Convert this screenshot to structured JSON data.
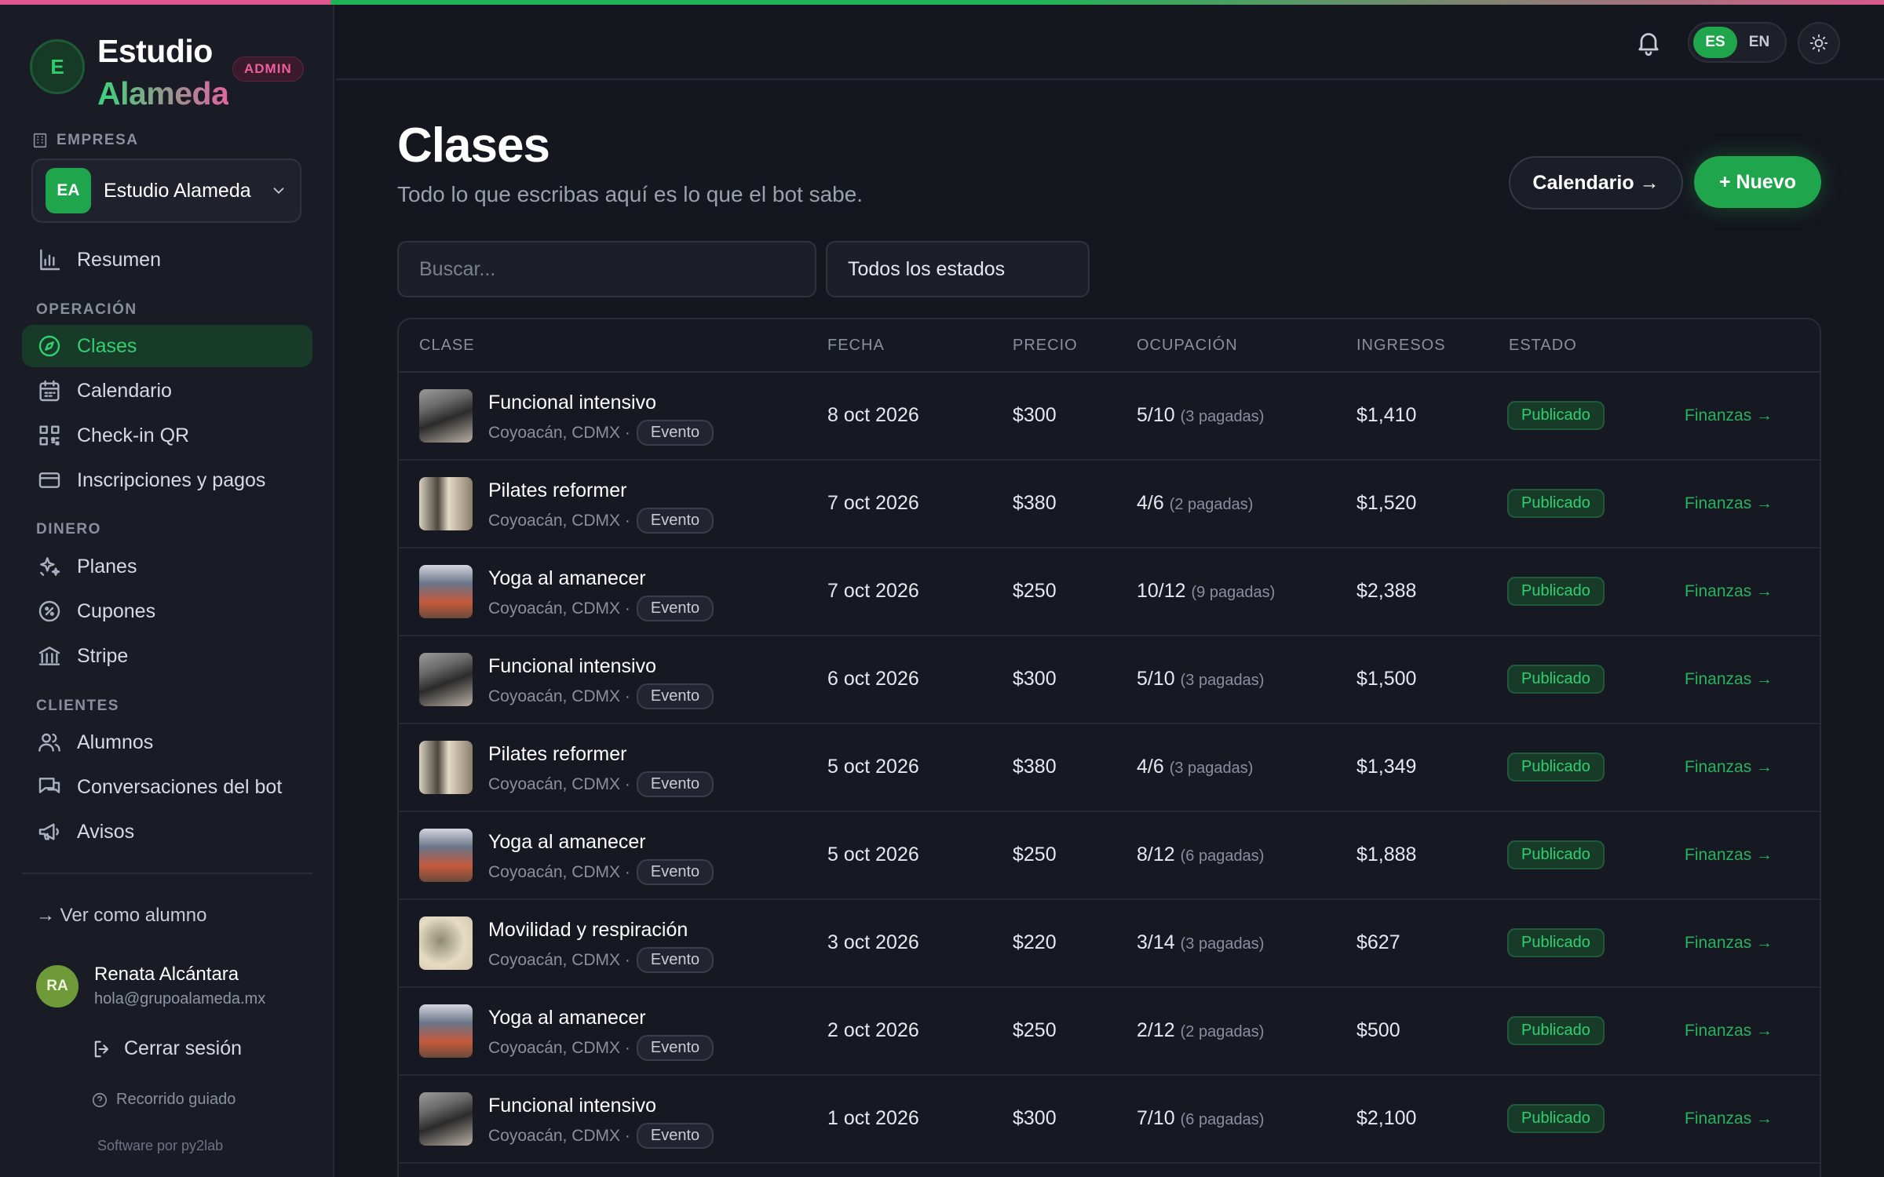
{
  "brand": {
    "initial": "E",
    "name_line1": "Estudio",
    "name_line2": "Alameda",
    "role_badge": "ADMIN"
  },
  "sidebar": {
    "empresa_label": "EMPRESA",
    "empresa": {
      "initials": "EA",
      "name": "Estudio Alameda"
    },
    "summary": {
      "label": "Resumen",
      "icon": "bar-chart-icon"
    },
    "sections": [
      {
        "label": "OPERACIÓN",
        "items": [
          {
            "label": "Clases",
            "icon": "compass-icon",
            "active": true
          },
          {
            "label": "Calendario",
            "icon": "calendar-icon"
          },
          {
            "label": "Check-in QR",
            "icon": "qr-icon"
          },
          {
            "label": "Inscripciones y pagos",
            "icon": "card-icon"
          }
        ]
      },
      {
        "label": "DINERO",
        "items": [
          {
            "label": "Planes",
            "icon": "sparkles-icon"
          },
          {
            "label": "Cupones",
            "icon": "percent-icon"
          },
          {
            "label": "Stripe",
            "icon": "bank-icon"
          }
        ]
      },
      {
        "label": "CLIENTES",
        "items": [
          {
            "label": "Alumnos",
            "icon": "users-icon"
          },
          {
            "label": "Conversaciones del bot",
            "icon": "chat-icon"
          },
          {
            "label": "Avisos",
            "icon": "megaphone-icon"
          }
        ]
      }
    ],
    "view_as_student": "→ Ver como alumno",
    "user": {
      "initials": "RA",
      "name": "Renata Alcántara",
      "email": "hola@grupoalameda.mx"
    },
    "logout": "Cerrar sesión",
    "tour": "Recorrido guiado",
    "credit": "Software por py2lab"
  },
  "topbar": {
    "lang_options": [
      "ES",
      "EN"
    ],
    "lang_selected": "ES"
  },
  "main": {
    "title": "Clases",
    "subtitle": "Todo lo que escribas aquí es lo que el bot sabe.",
    "calendar_button": "Calendario →",
    "new_button": "+ Nuevo",
    "search_placeholder": "Buscar...",
    "status_filter": "Todos los estados",
    "columns": [
      "CLASE",
      "FECHA",
      "PRECIO",
      "OCUPACIÓN",
      "INGRESOS",
      "ESTADO"
    ],
    "rows": [
      {
        "name": "Funcional intensivo",
        "location": "Coyoacán, CDMX ·",
        "tag": "Evento",
        "date": "8 oct 2026",
        "price": "$300",
        "occupancy": "5/10",
        "paid": "(3 pagadas)",
        "revenue": "$1,410",
        "status": "Publicado",
        "link": "Finanzas →"
      },
      {
        "name": "Pilates reformer",
        "location": "Coyoacán, CDMX ·",
        "tag": "Evento",
        "date": "7 oct 2026",
        "price": "$380",
        "occupancy": "4/6",
        "paid": "(2 pagadas)",
        "revenue": "$1,520",
        "status": "Publicado",
        "link": "Finanzas →"
      },
      {
        "name": "Yoga al amanecer",
        "location": "Coyoacán, CDMX ·",
        "tag": "Evento",
        "date": "7 oct 2026",
        "price": "$250",
        "occupancy": "10/12",
        "paid": "(9 pagadas)",
        "revenue": "$2,388",
        "status": "Publicado",
        "link": "Finanzas →"
      },
      {
        "name": "Funcional intensivo",
        "location": "Coyoacán, CDMX ·",
        "tag": "Evento",
        "date": "6 oct 2026",
        "price": "$300",
        "occupancy": "5/10",
        "paid": "(3 pagadas)",
        "revenue": "$1,500",
        "status": "Publicado",
        "link": "Finanzas →"
      },
      {
        "name": "Pilates reformer",
        "location": "Coyoacán, CDMX ·",
        "tag": "Evento",
        "date": "5 oct 2026",
        "price": "$380",
        "occupancy": "4/6",
        "paid": "(3 pagadas)",
        "revenue": "$1,349",
        "status": "Publicado",
        "link": "Finanzas →"
      },
      {
        "name": "Yoga al amanecer",
        "location": "Coyoacán, CDMX ·",
        "tag": "Evento",
        "date": "5 oct 2026",
        "price": "$250",
        "occupancy": "8/12",
        "paid": "(6 pagadas)",
        "revenue": "$1,888",
        "status": "Publicado",
        "link": "Finanzas →"
      },
      {
        "name": "Movilidad y respiración",
        "location": "Coyoacán, CDMX ·",
        "tag": "Evento",
        "date": "3 oct 2026",
        "price": "$220",
        "occupancy": "3/14",
        "paid": "(3 pagadas)",
        "revenue": "$627",
        "status": "Publicado",
        "link": "Finanzas →"
      },
      {
        "name": "Yoga al amanecer",
        "location": "Coyoacán, CDMX ·",
        "tag": "Evento",
        "date": "2 oct 2026",
        "price": "$250",
        "occupancy": "2/12",
        "paid": "(2 pagadas)",
        "revenue": "$500",
        "status": "Publicado",
        "link": "Finanzas →"
      },
      {
        "name": "Funcional intensivo",
        "location": "Coyoacán, CDMX ·",
        "tag": "Evento",
        "date": "1 oct 2026",
        "price": "$300",
        "occupancy": "7/10",
        "paid": "(6 pagadas)",
        "revenue": "$2,100",
        "status": "Publicado",
        "link": "Finanzas →"
      }
    ]
  },
  "colors": {
    "accent": "#1fa64c",
    "brand_pink": "#e463a0",
    "background": "#15171f"
  }
}
